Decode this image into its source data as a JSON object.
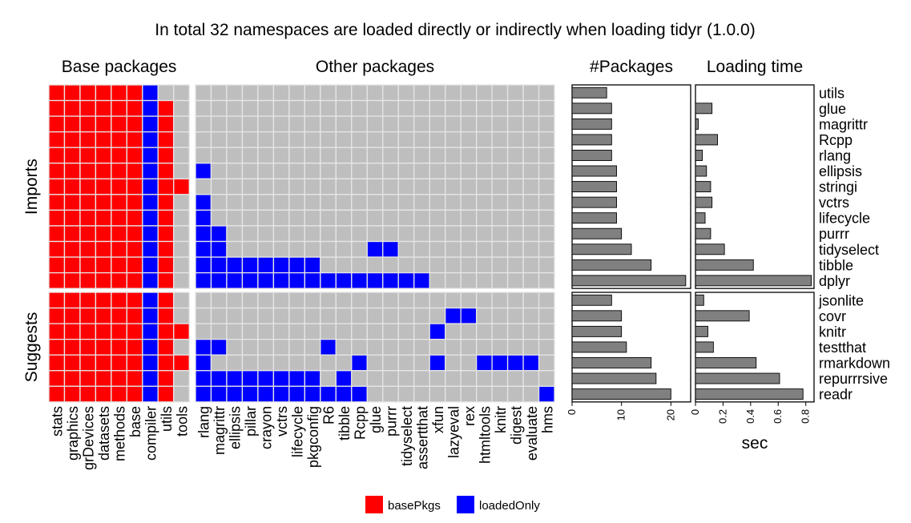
{
  "title": "In total 32 namespaces are loaded directly or indirectly when loading tidyr (1.0.0)",
  "colors": {
    "basePkgs": "#ff0000",
    "loadedOnly": "#0000ff",
    "empty": "#bebebe",
    "grid": "#e6e6e6",
    "bar": "#808080"
  },
  "chart_data": [
    {
      "type": "heatmap",
      "panels": [
        "Base packages",
        "Other packages"
      ],
      "facets": [
        "Imports",
        "Suggests"
      ],
      "columns_base": [
        "stats",
        "graphics",
        "grDevices",
        "datasets",
        "methods",
        "base",
        "compiler",
        "utils",
        "tools"
      ],
      "columns_other": [
        "rlang",
        "magrittr",
        "ellipsis",
        "pillar",
        "crayon",
        "vctrs",
        "lifecycle",
        "pkgconfig",
        "R6",
        "tibble",
        "Rcpp",
        "glue",
        "purrr",
        "tidyselect",
        "assertthat",
        "xfun",
        "lazyeval",
        "rex",
        "htmltools",
        "knitr",
        "digest",
        "evaluate",
        "hms"
      ],
      "rows_imports": [
        "utils",
        "glue",
        "magrittr",
        "Rcpp",
        "rlang",
        "ellipsis",
        "stringi",
        "vctrs",
        "lifecycle",
        "purrr",
        "tidyselect",
        "tibble",
        "dplyr"
      ],
      "rows_suggests": [
        "jsonlite",
        "covr",
        "knitr",
        "testthat",
        "rmarkdown",
        "repurrrsive",
        "readr"
      ],
      "legend": [
        {
          "key": "basePkgs",
          "label": "basePkgs"
        },
        {
          "key": "loadedOnly",
          "label": "loadedOnly"
        }
      ],
      "cells": {
        "utils": {
          "base": [
            "stats",
            "graphics",
            "grDevices",
            "datasets",
            "methods",
            "base",
            "compiler"
          ],
          "other": []
        },
        "glue": {
          "base": [
            "stats",
            "graphics",
            "grDevices",
            "datasets",
            "methods",
            "base",
            "compiler",
            "utils"
          ],
          "other": []
        },
        "magrittr": {
          "base": [
            "stats",
            "graphics",
            "grDevices",
            "datasets",
            "methods",
            "base",
            "compiler",
            "utils"
          ],
          "other": []
        },
        "Rcpp": {
          "base": [
            "stats",
            "graphics",
            "grDevices",
            "datasets",
            "methods",
            "base",
            "compiler",
            "utils"
          ],
          "other": []
        },
        "rlang": {
          "base": [
            "stats",
            "graphics",
            "grDevices",
            "datasets",
            "methods",
            "base",
            "compiler",
            "utils"
          ],
          "other": []
        },
        "ellipsis": {
          "base": [
            "stats",
            "graphics",
            "grDevices",
            "datasets",
            "methods",
            "base",
            "compiler",
            "utils"
          ],
          "other": [
            "rlang"
          ]
        },
        "stringi": {
          "base": [
            "stats",
            "graphics",
            "grDevices",
            "datasets",
            "methods",
            "base",
            "compiler",
            "utils",
            "tools"
          ],
          "other": []
        },
        "vctrs": {
          "base": [
            "stats",
            "graphics",
            "grDevices",
            "datasets",
            "methods",
            "base",
            "compiler",
            "utils"
          ],
          "other": [
            "rlang"
          ]
        },
        "lifecycle": {
          "base": [
            "stats",
            "graphics",
            "grDevices",
            "datasets",
            "methods",
            "base",
            "compiler",
            "utils"
          ],
          "other": [
            "rlang"
          ]
        },
        "purrr": {
          "base": [
            "stats",
            "graphics",
            "grDevices",
            "datasets",
            "methods",
            "base",
            "compiler",
            "utils"
          ],
          "other": [
            "rlang",
            "magrittr"
          ]
        },
        "tidyselect": {
          "base": [
            "stats",
            "graphics",
            "grDevices",
            "datasets",
            "methods",
            "base",
            "compiler",
            "utils"
          ],
          "other": [
            "rlang",
            "magrittr",
            "glue",
            "purrr"
          ]
        },
        "tibble": {
          "base": [
            "stats",
            "graphics",
            "grDevices",
            "datasets",
            "methods",
            "base",
            "compiler",
            "utils"
          ],
          "other": [
            "rlang",
            "magrittr",
            "ellipsis",
            "pillar",
            "crayon",
            "vctrs",
            "lifecycle",
            "pkgconfig"
          ]
        },
        "dplyr": {
          "base": [
            "stats",
            "graphics",
            "grDevices",
            "datasets",
            "methods",
            "base",
            "compiler",
            "utils"
          ],
          "other": [
            "rlang",
            "magrittr",
            "ellipsis",
            "pillar",
            "crayon",
            "vctrs",
            "lifecycle",
            "pkgconfig",
            "R6",
            "tibble",
            "Rcpp",
            "glue",
            "purrr",
            "tidyselect",
            "assertthat"
          ]
        },
        "jsonlite": {
          "base": [
            "stats",
            "graphics",
            "grDevices",
            "datasets",
            "methods",
            "base",
            "compiler",
            "utils"
          ],
          "other": []
        },
        "covr": {
          "base": [
            "stats",
            "graphics",
            "grDevices",
            "datasets",
            "methods",
            "base",
            "compiler",
            "utils"
          ],
          "other": [
            "lazyeval",
            "rex"
          ]
        },
        "knitr": {
          "base": [
            "stats",
            "graphics",
            "grDevices",
            "datasets",
            "methods",
            "base",
            "compiler",
            "utils",
            "tools"
          ],
          "other": [
            "xfun"
          ]
        },
        "testthat": {
          "base": [
            "stats",
            "graphics",
            "grDevices",
            "datasets",
            "methods",
            "base",
            "compiler",
            "utils"
          ],
          "other": [
            "rlang",
            "magrittr",
            "R6"
          ]
        },
        "rmarkdown": {
          "base": [
            "stats",
            "graphics",
            "grDevices",
            "datasets",
            "methods",
            "base",
            "compiler",
            "utils",
            "tools"
          ],
          "other": [
            "rlang",
            "Rcpp",
            "xfun",
            "htmltools",
            "knitr",
            "digest",
            "evaluate"
          ]
        },
        "repurrrsive": {
          "base": [
            "stats",
            "graphics",
            "grDevices",
            "datasets",
            "methods",
            "base",
            "compiler",
            "utils"
          ],
          "other": [
            "rlang",
            "magrittr",
            "ellipsis",
            "pillar",
            "crayon",
            "vctrs",
            "lifecycle",
            "pkgconfig",
            "tibble"
          ]
        },
        "readr": {
          "base": [
            "stats",
            "graphics",
            "grDevices",
            "datasets",
            "methods",
            "base",
            "compiler",
            "utils"
          ],
          "other": [
            "rlang",
            "magrittr",
            "ellipsis",
            "pillar",
            "crayon",
            "vctrs",
            "lifecycle",
            "pkgconfig",
            "R6",
            "tibble",
            "Rcpp",
            "hms"
          ]
        }
      }
    },
    {
      "type": "bar",
      "title": "#Packages",
      "orientation": "horizontal",
      "xlim": [
        0,
        24
      ],
      "ticks": [
        0,
        10,
        20
      ],
      "tick_labels": [
        "0",
        "10",
        "20"
      ],
      "imports": {
        "categories": [
          "utils",
          "glue",
          "magrittr",
          "Rcpp",
          "rlang",
          "ellipsis",
          "stringi",
          "vctrs",
          "lifecycle",
          "purrr",
          "tidyselect",
          "tibble",
          "dplyr"
        ],
        "values": [
          7,
          8,
          8,
          8,
          8,
          9,
          9,
          9,
          9,
          10,
          12,
          16,
          23
        ]
      },
      "suggests": {
        "categories": [
          "jsonlite",
          "covr",
          "knitr",
          "testthat",
          "rmarkdown",
          "repurrrsive",
          "readr"
        ],
        "values": [
          8,
          10,
          10,
          11,
          16,
          17,
          20
        ]
      }
    },
    {
      "type": "bar",
      "title": "Loading time",
      "orientation": "horizontal",
      "xlabel": "sec",
      "xlim": [
        0,
        0.86
      ],
      "ticks": [
        0,
        0.2,
        0.4,
        0.6,
        0.8
      ],
      "tick_labels": [
        "0",
        "0.2",
        "0.4",
        "0.6",
        "0.8"
      ],
      "imports": {
        "categories": [
          "utils",
          "glue",
          "magrittr",
          "Rcpp",
          "rlang",
          "ellipsis",
          "stringi",
          "vctrs",
          "lifecycle",
          "purrr",
          "tidyselect",
          "tibble",
          "dplyr"
        ],
        "values": [
          0,
          0.12,
          0.02,
          0.16,
          0.05,
          0.08,
          0.11,
          0.12,
          0.07,
          0.11,
          0.21,
          0.42,
          0.84
        ]
      },
      "suggests": {
        "categories": [
          "jsonlite",
          "covr",
          "knitr",
          "testthat",
          "rmarkdown",
          "repurrrsive",
          "readr"
        ],
        "values": [
          0.06,
          0.39,
          0.09,
          0.13,
          0.44,
          0.61,
          0.78
        ]
      }
    }
  ]
}
